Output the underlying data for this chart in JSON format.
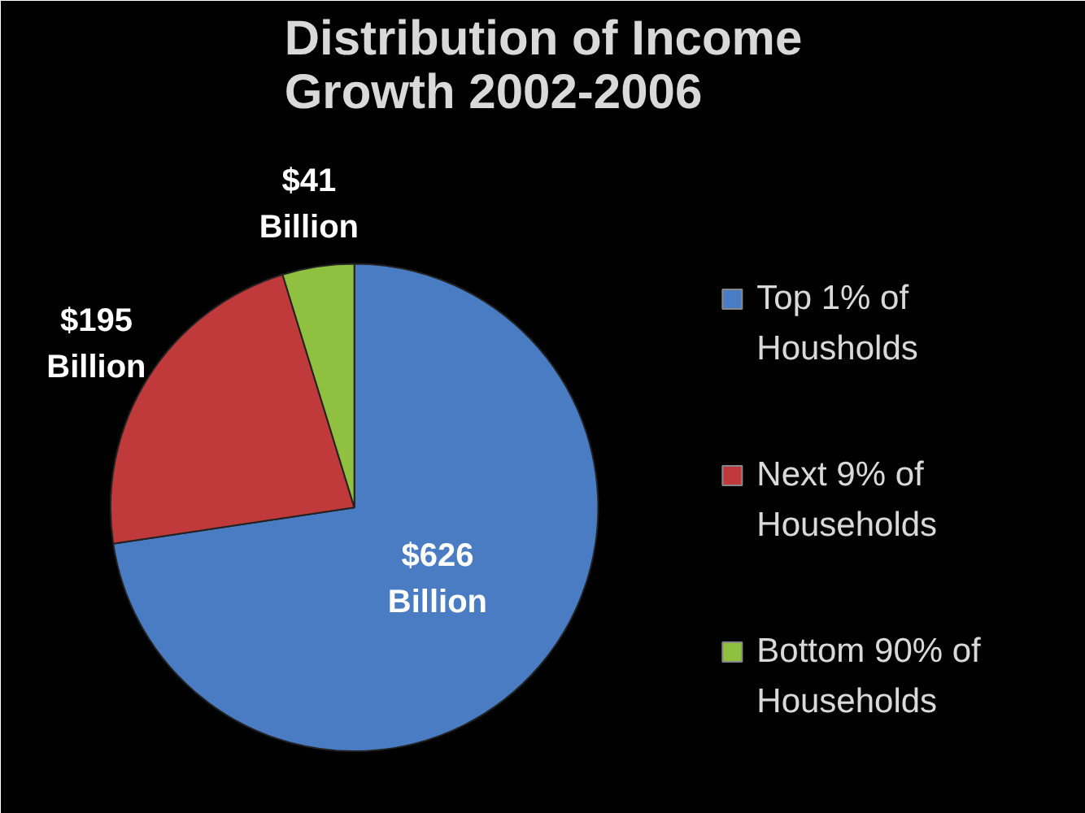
{
  "chart_data": {
    "type": "pie",
    "title": "Distribution of Income Growth 2002-2006",
    "categories": [
      "Top 1% of Housholds",
      "Next 9% of Households",
      "Bottom 90% of Households"
    ],
    "values": [
      626,
      195,
      41
    ],
    "colors": [
      "#4a7cc4",
      "#c0393b",
      "#8fc040"
    ],
    "value_labels": [
      "$626 Billion",
      "$195 Billion",
      "$41 Billion"
    ],
    "legend": "right"
  }
}
